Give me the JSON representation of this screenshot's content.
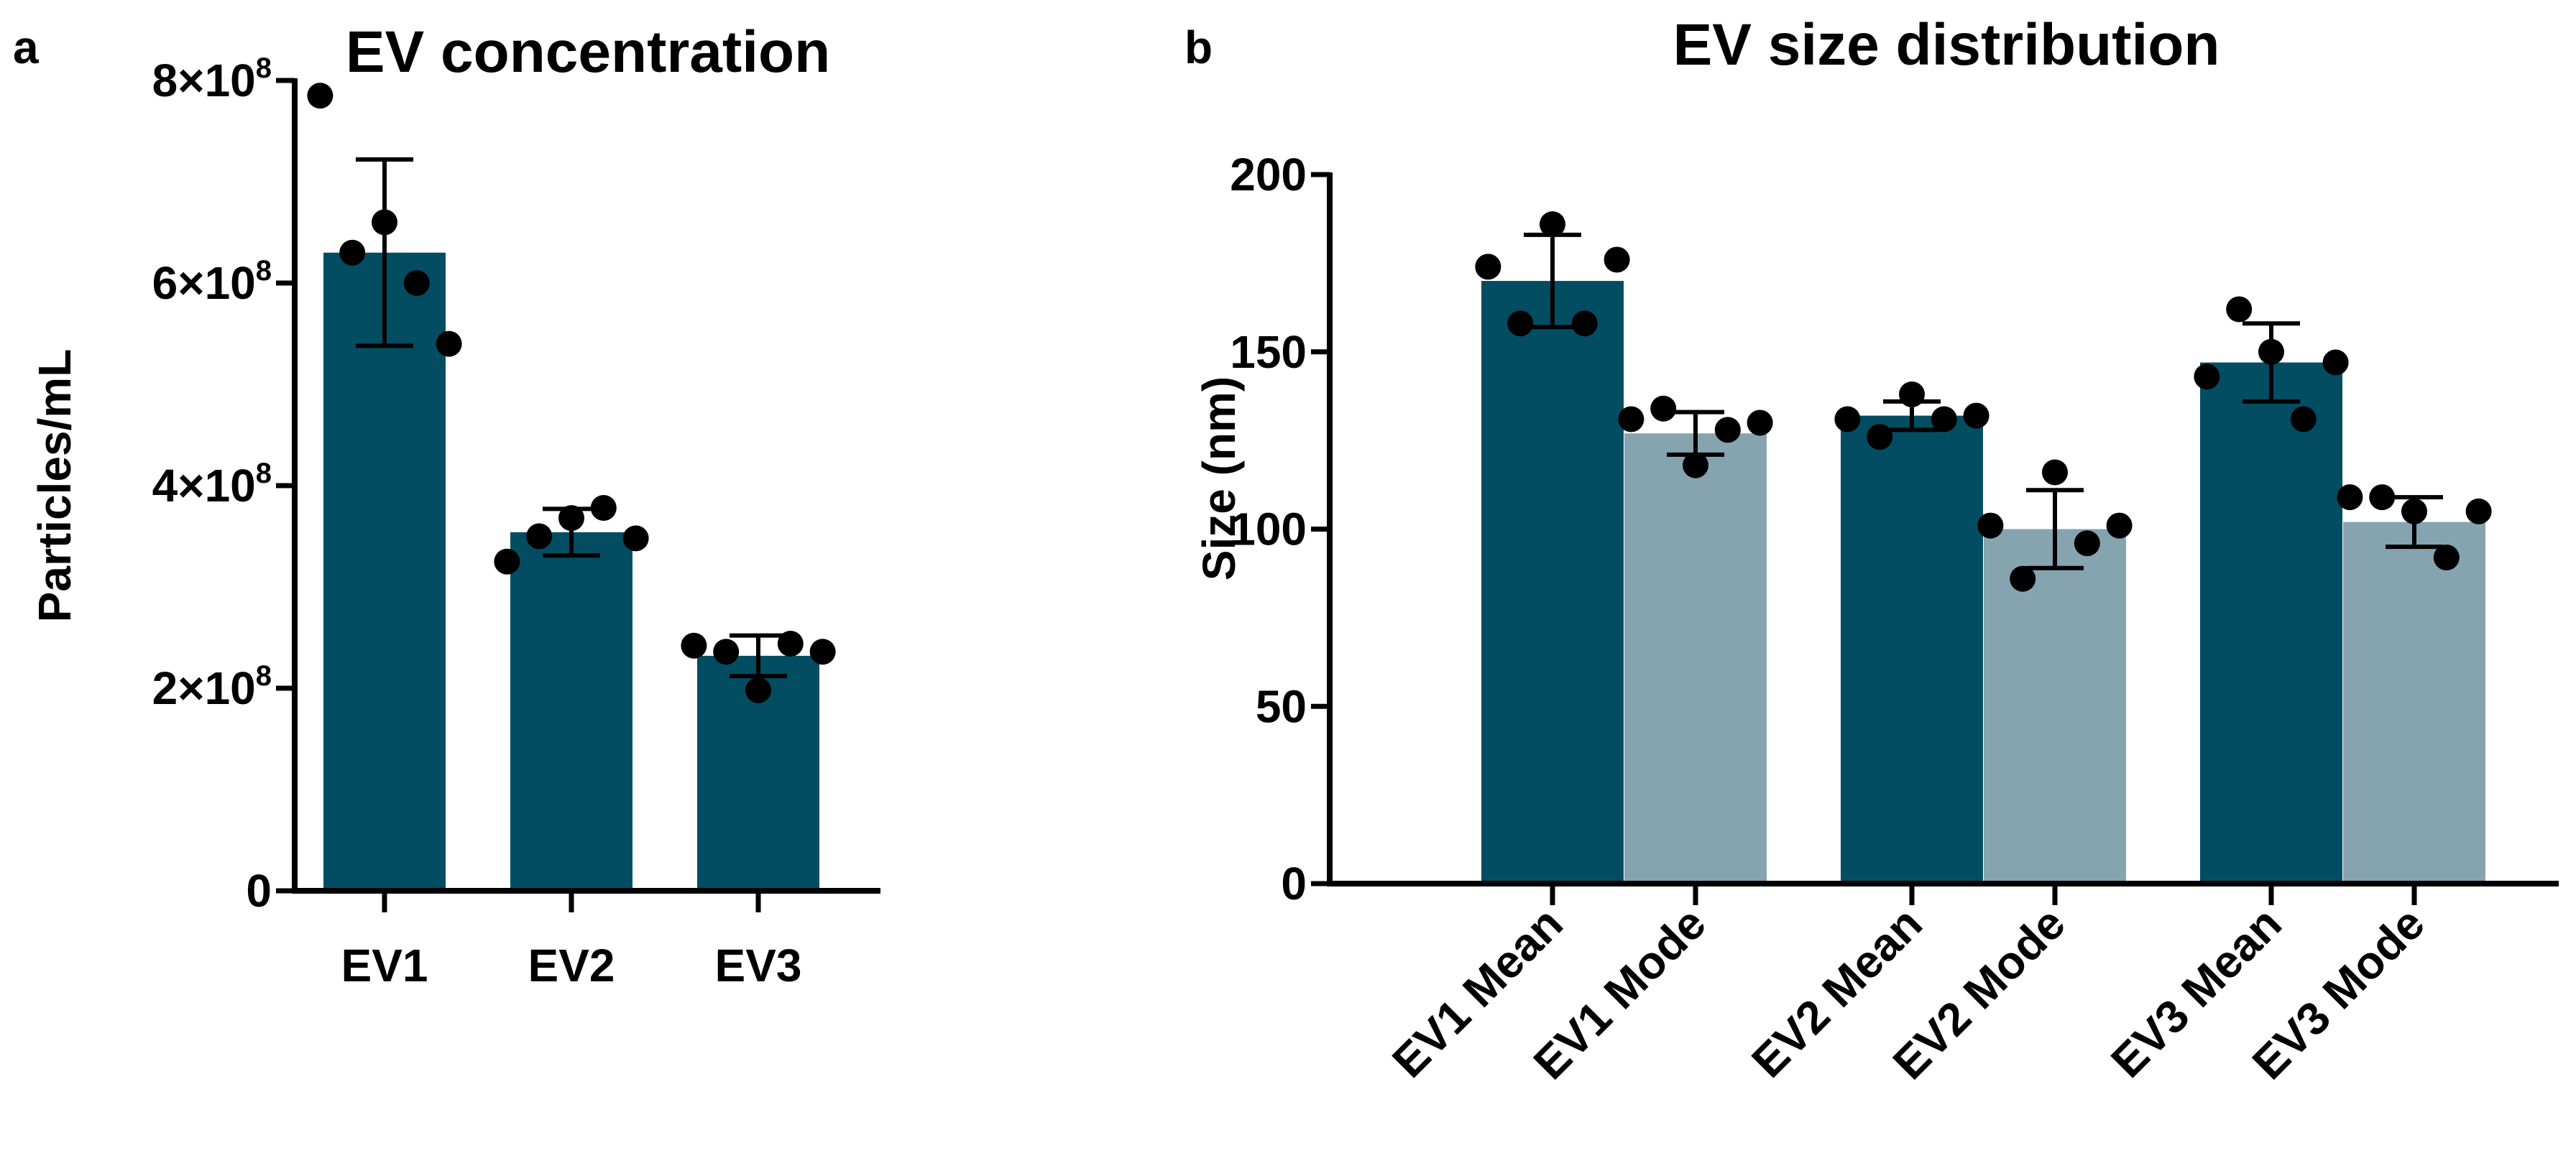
{
  "colors": {
    "dark_bar": "#034d63",
    "light_bar": "#86a4b0",
    "ink": "#000000"
  },
  "panels": {
    "a": {
      "label": "a"
    },
    "b": {
      "label": "b"
    }
  },
  "chart_data": [
    {
      "type": "bar",
      "panel": "a",
      "title": "EV concentration",
      "xlabel": "",
      "ylabel": "Particles/mL",
      "ylim": [
        0,
        800000000
      ],
      "yticks": [
        0,
        200000000,
        400000000,
        600000000,
        800000000
      ],
      "ytick_labels": [
        {
          "pre": "0",
          "exp": ""
        },
        {
          "pre": "2×10",
          "exp": "8"
        },
        {
          "pre": "4×10",
          "exp": "8"
        },
        {
          "pre": "6×10",
          "exp": "8"
        },
        {
          "pre": "8×10",
          "exp": "8"
        }
      ],
      "categories": [
        "EV1",
        "EV2",
        "EV3"
      ],
      "values": [
        630000000,
        354000000,
        232000000
      ],
      "errors": [
        92000000,
        23000000,
        20000000
      ],
      "bar_colors": [
        "dark",
        "dark",
        "dark"
      ],
      "points": [
        [
          785000000,
          630000000,
          660000000,
          600000000,
          540000000
        ],
        [
          325000000,
          350000000,
          368000000,
          378000000,
          348000000
        ],
        [
          242000000,
          236000000,
          198000000,
          244000000,
          236000000
        ]
      ],
      "grid": false,
      "legend": "none"
    },
    {
      "type": "bar",
      "panel": "b",
      "title": "EV size distribution",
      "xlabel": "",
      "ylabel": "Size (nm)",
      "ylim": [
        0,
        200
      ],
      "yticks": [
        0,
        50,
        100,
        150,
        200
      ],
      "ytick_labels": [
        {
          "pre": "0",
          "exp": ""
        },
        {
          "pre": "50",
          "exp": ""
        },
        {
          "pre": "100",
          "exp": ""
        },
        {
          "pre": "150",
          "exp": ""
        },
        {
          "pre": "200",
          "exp": ""
        }
      ],
      "categories": [
        "EV1 Mean",
        "EV1 Mode",
        "EV2 Mean",
        "EV2 Mode",
        "EV3 Mean",
        "EV3 Mode"
      ],
      "values": [
        170,
        127,
        132,
        100,
        147,
        102
      ],
      "errors": [
        13,
        6,
        4,
        11,
        11,
        7
      ],
      "bar_colors": [
        "dark",
        "light",
        "dark",
        "light",
        "dark",
        "light"
      ],
      "points": [
        [
          174,
          158,
          186,
          158,
          176
        ],
        [
          131,
          134,
          118,
          128,
          130
        ],
        [
          131,
          126,
          138,
          131,
          132
        ],
        [
          101,
          86,
          116,
          96,
          101
        ],
        [
          143,
          162,
          150,
          131,
          147
        ],
        [
          109,
          109,
          105,
          92,
          105
        ]
      ],
      "grid": false,
      "legend": "none"
    }
  ]
}
